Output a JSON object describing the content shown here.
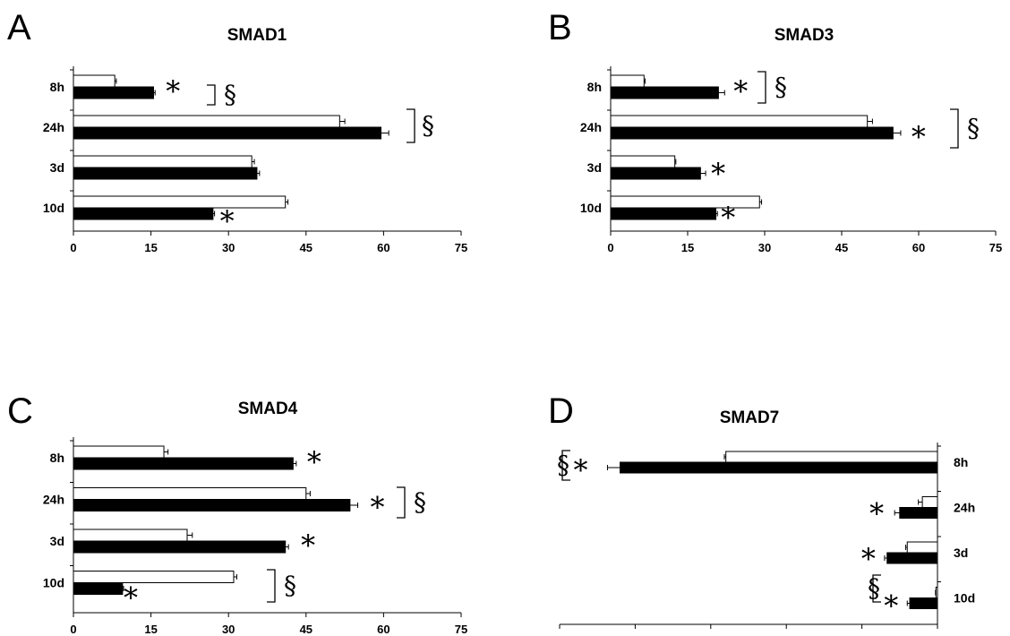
{
  "chart_data": [
    {
      "panel": "A",
      "type": "bar",
      "orientation": "horizontal",
      "title": "SMAD1",
      "categories": [
        "8h",
        "24h",
        "3d",
        "10d"
      ],
      "series": [
        {
          "fill": "#ffffff",
          "values": [
            8,
            51.5,
            34.5,
            41
          ]
        },
        {
          "fill": "#000000",
          "values": [
            15.5,
            59.5,
            35.5,
            27
          ]
        }
      ],
      "error": [
        [
          0.3,
          1,
          0.5,
          0.5
        ],
        [
          0.3,
          1.5,
          0.5,
          0.3
        ]
      ],
      "xlim": [
        0,
        75
      ],
      "xticks": [
        "0",
        "15",
        "30",
        "45",
        "60",
        "75"
      ],
      "annotations": [
        {
          "category": 0,
          "text": "*"
        },
        {
          "category": 0,
          "text": "§"
        },
        {
          "category": 1,
          "text": "§"
        },
        {
          "category": 3,
          "text": "*"
        }
      ]
    },
    {
      "panel": "B",
      "type": "bar",
      "orientation": "horizontal",
      "title": "SMAD3",
      "categories": [
        "8h",
        "24h",
        "3d",
        "10d"
      ],
      "series": [
        {
          "fill": "#ffffff",
          "values": [
            6.5,
            50,
            12.5,
            29
          ]
        },
        {
          "fill": "#000000",
          "values": [
            21,
            55,
            17.5,
            20.5
          ]
        }
      ],
      "error": [
        [
          0.2,
          1,
          0.2,
          0.4
        ],
        [
          1.2,
          1.5,
          1,
          0.3
        ]
      ],
      "xlim": [
        0,
        75
      ],
      "xticks": [
        "0",
        "15",
        "30",
        "45",
        "60",
        "75"
      ],
      "annotations": [
        {
          "category": 0,
          "text": "*"
        },
        {
          "category": 0,
          "text": "§"
        },
        {
          "category": 1,
          "text": "*"
        },
        {
          "category": 1,
          "text": "§"
        },
        {
          "category": 2,
          "text": "*"
        },
        {
          "category": 3,
          "text": "*"
        }
      ]
    },
    {
      "panel": "C",
      "type": "bar",
      "orientation": "horizontal",
      "title": "SMAD4",
      "categories": [
        "8h",
        "24h",
        "3d",
        "10d"
      ],
      "series": [
        {
          "fill": "#ffffff",
          "values": [
            17.5,
            45,
            22,
            31
          ]
        },
        {
          "fill": "#000000",
          "values": [
            42.5,
            53.5,
            41,
            9.5
          ]
        }
      ],
      "error": [
        [
          0.8,
          0.8,
          1,
          0.6
        ],
        [
          0.6,
          1.5,
          0.6,
          0.2
        ]
      ],
      "xlim": [
        0,
        75
      ],
      "xticks": [
        "0",
        "15",
        "30",
        "45",
        "60",
        "75"
      ],
      "annotations": [
        {
          "category": 0,
          "text": "*"
        },
        {
          "category": 1,
          "text": "*"
        },
        {
          "category": 1,
          "text": "§"
        },
        {
          "category": 2,
          "text": "*"
        },
        {
          "category": 3,
          "text": "*"
        },
        {
          "category": 3,
          "text": "§"
        }
      ]
    },
    {
      "panel": "D",
      "type": "bar",
      "orientation": "horizontal",
      "title": "SMAD7",
      "categories": [
        "8h",
        "24h",
        "3d",
        "10d"
      ],
      "series": [
        {
          "fill": "#ffffff",
          "values": [
            -42,
            -3,
            -6,
            -0.3
          ]
        },
        {
          "fill": "#000000",
          "values": [
            -63,
            -7.5,
            -10,
            -5.5
          ]
        }
      ],
      "error": [
        [
          0.3,
          0.8,
          0.3,
          0.1
        ],
        [
          2.5,
          1,
          0.5,
          0.5
        ]
      ],
      "xlim": [
        -75,
        0
      ],
      "xticks": [
        "-75",
        "-60",
        "-45",
        "-30",
        "-15",
        "0"
      ],
      "annotations": [
        {
          "category": 0,
          "text": "*"
        },
        {
          "category": 0,
          "text": "§"
        },
        {
          "category": 1,
          "text": "*"
        },
        {
          "category": 2,
          "text": "*"
        },
        {
          "category": 3,
          "text": "*"
        },
        {
          "category": 3,
          "text": "§"
        }
      ]
    }
  ]
}
